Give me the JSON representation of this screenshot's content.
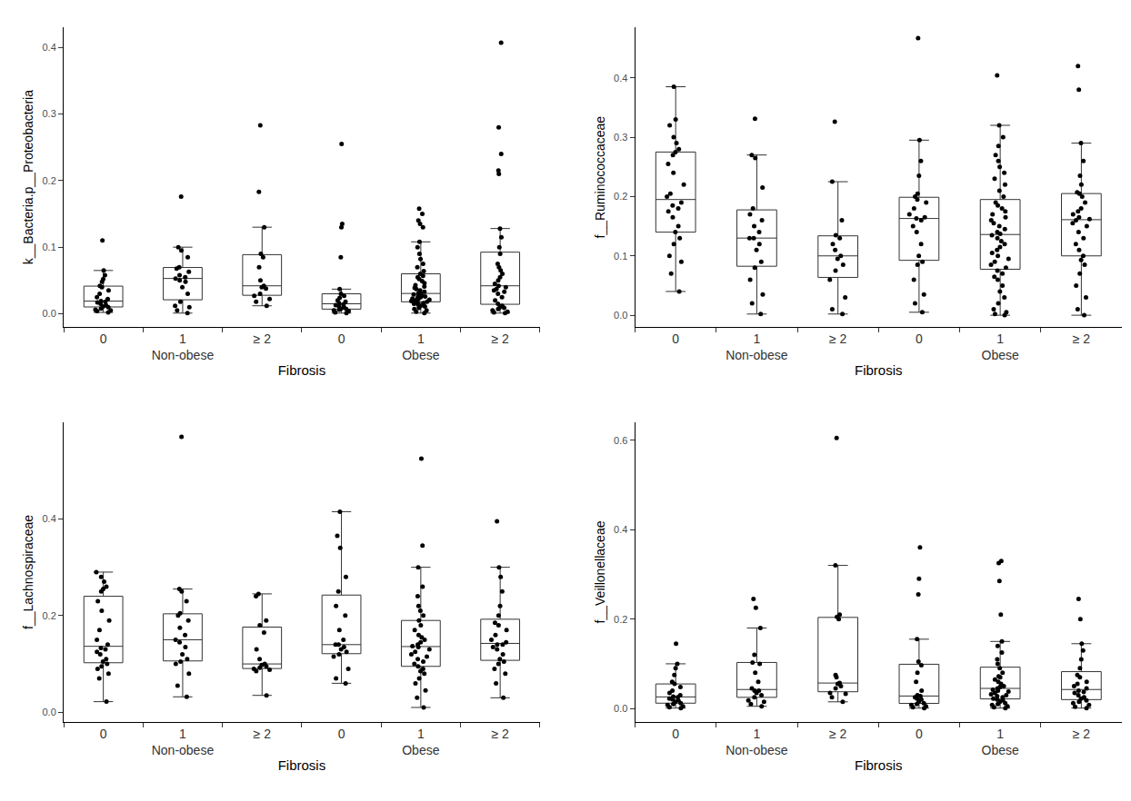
{
  "chart_data": [
    {
      "type": "box",
      "x_label": "Fibrosis",
      "y_label": "k__Bacteria.p__Proteobacteria",
      "color": "#000000",
      "grid": false,
      "categories": [
        "0",
        "1",
        "≥ 2",
        "0",
        "1",
        "≥ 2"
      ],
      "groups": [
        "Non-obese",
        "Non-obese",
        "Non-obese",
        "Obese",
        "Obese",
        "Obese"
      ],
      "ylim": [
        -0.02,
        0.43
      ],
      "yticks": [
        {
          "value": 0,
          "label": "0.0"
        },
        0.1,
        0.2,
        0.3,
        0.4
      ],
      "values": [
        [
          0.002,
          0.004,
          0.005,
          0.006,
          0.008,
          0.01,
          0.011,
          0.013,
          0.015,
          0.017,
          0.018,
          0.019,
          0.022,
          0.025,
          0.03,
          0.035,
          0.04,
          0.042,
          0.048,
          0.052,
          0.058,
          0.065,
          0.11
        ],
        [
          0.001,
          0.005,
          0.01,
          0.012,
          0.018,
          0.03,
          0.04,
          0.048,
          0.05,
          0.053,
          0.055,
          0.058,
          0.063,
          0.068,
          0.07,
          0.085,
          0.095,
          0.1,
          0.176
        ],
        [
          0.012,
          0.018,
          0.022,
          0.027,
          0.03,
          0.038,
          0.04,
          0.042,
          0.05,
          0.07,
          0.085,
          0.09,
          0.13,
          0.183,
          0.283
        ],
        [
          0.001,
          0.002,
          0.004,
          0.005,
          0.006,
          0.007,
          0.008,
          0.01,
          0.012,
          0.013,
          0.014,
          0.016,
          0.018,
          0.02,
          0.024,
          0.027,
          0.03,
          0.037,
          0.085,
          0.13,
          0.135,
          0.255
        ],
        [
          0.001,
          0.003,
          0.005,
          0.007,
          0.009,
          0.011,
          0.012,
          0.013,
          0.014,
          0.015,
          0.016,
          0.017,
          0.018,
          0.019,
          0.02,
          0.021,
          0.022,
          0.023,
          0.024,
          0.025,
          0.026,
          0.027,
          0.028,
          0.029,
          0.03,
          0.031,
          0.033,
          0.035,
          0.037,
          0.039,
          0.041,
          0.043,
          0.046,
          0.049,
          0.052,
          0.055,
          0.057,
          0.06,
          0.064,
          0.07,
          0.075,
          0.082,
          0.09,
          0.1,
          0.108,
          0.13,
          0.135,
          0.14,
          0.15,
          0.158
        ],
        [
          0.001,
          0.002,
          0.003,
          0.005,
          0.007,
          0.009,
          0.01,
          0.012,
          0.015,
          0.02,
          0.025,
          0.03,
          0.033,
          0.035,
          0.037,
          0.04,
          0.042,
          0.045,
          0.05,
          0.055,
          0.06,
          0.065,
          0.07,
          0.075,
          0.09,
          0.1,
          0.115,
          0.128,
          0.21,
          0.215,
          0.24,
          0.28,
          0.407
        ]
      ]
    },
    {
      "type": "box",
      "x_label": "Fibrosis",
      "y_label": "f__Ruminococcaceae",
      "color": "#000000",
      "grid": false,
      "categories": [
        "0",
        "1",
        "≥ 2",
        "0",
        "1",
        "≥ 2"
      ],
      "groups": [
        "Non-obese",
        "Non-obese",
        "Non-obese",
        "Obese",
        "Obese",
        "Obese"
      ],
      "ylim": [
        -0.02,
        0.485
      ],
      "yticks": [
        {
          "value": 0,
          "label": "0.0"
        },
        0.1,
        0.2,
        0.3,
        0.4
      ],
      "values": [
        [
          0.04,
          0.07,
          0.09,
          0.1,
          0.12,
          0.13,
          0.14,
          0.15,
          0.165,
          0.175,
          0.18,
          0.185,
          0.19,
          0.2,
          0.205,
          0.22,
          0.24,
          0.255,
          0.27,
          0.275,
          0.28,
          0.29,
          0.3,
          0.32,
          0.33,
          0.385
        ],
        [
          0.002,
          0.02,
          0.035,
          0.06,
          0.08,
          0.09,
          0.11,
          0.12,
          0.13,
          0.13,
          0.14,
          0.15,
          0.16,
          0.17,
          0.18,
          0.215,
          0.265,
          0.27,
          0.331
        ],
        [
          0.002,
          0.01,
          0.03,
          0.06,
          0.075,
          0.085,
          0.095,
          0.1,
          0.11,
          0.12,
          0.13,
          0.135,
          0.16,
          0.225,
          0.326
        ],
        [
          0.005,
          0.02,
          0.035,
          0.06,
          0.085,
          0.09,
          0.1,
          0.12,
          0.14,
          0.15,
          0.16,
          0.163,
          0.165,
          0.17,
          0.18,
          0.19,
          0.195,
          0.2,
          0.205,
          0.235,
          0.26,
          0.295,
          0.467
        ],
        [
          0.0,
          0.002,
          0.005,
          0.01,
          0.02,
          0.03,
          0.04,
          0.05,
          0.06,
          0.065,
          0.07,
          0.075,
          0.08,
          0.085,
          0.09,
          0.095,
          0.1,
          0.105,
          0.11,
          0.115,
          0.12,
          0.125,
          0.13,
          0.135,
          0.137,
          0.14,
          0.145,
          0.15,
          0.155,
          0.16,
          0.165,
          0.17,
          0.175,
          0.18,
          0.185,
          0.19,
          0.2,
          0.21,
          0.22,
          0.23,
          0.24,
          0.25,
          0.26,
          0.27,
          0.285,
          0.3,
          0.32,
          0.404
        ],
        [
          0.0,
          0.01,
          0.03,
          0.05,
          0.07,
          0.085,
          0.093,
          0.1,
          0.11,
          0.12,
          0.13,
          0.14,
          0.15,
          0.155,
          0.16,
          0.162,
          0.165,
          0.17,
          0.175,
          0.18,
          0.19,
          0.2,
          0.205,
          0.207,
          0.22,
          0.235,
          0.26,
          0.29,
          0.38,
          0.42
        ]
      ]
    },
    {
      "type": "box",
      "x_label": "Fibrosis",
      "y_label": "f__Lachnospiraceae",
      "color": "#000000",
      "grid": false,
      "categories": [
        "0",
        "1",
        "≥ 2",
        "0",
        "1",
        "≥ 2"
      ],
      "groups": [
        "Non-obese",
        "Non-obese",
        "Non-obese",
        "Obese",
        "Obese",
        "Obese"
      ],
      "ylim": [
        -0.02,
        0.6
      ],
      "yticks": [
        {
          "value": 0,
          "label": "0.0"
        },
        0.2,
        0.4
      ],
      "values": [
        [
          0.022,
          0.07,
          0.08,
          0.09,
          0.095,
          0.1,
          0.105,
          0.11,
          0.12,
          0.125,
          0.13,
          0.133,
          0.14,
          0.15,
          0.17,
          0.19,
          0.21,
          0.23,
          0.25,
          0.255,
          0.26,
          0.27,
          0.28,
          0.29
        ],
        [
          0.032,
          0.055,
          0.08,
          0.1,
          0.105,
          0.11,
          0.12,
          0.135,
          0.145,
          0.15,
          0.16,
          0.175,
          0.19,
          0.2,
          0.205,
          0.23,
          0.25,
          0.255,
          0.57
        ],
        [
          0.035,
          0.085,
          0.088,
          0.09,
          0.092,
          0.095,
          0.098,
          0.1,
          0.11,
          0.13,
          0.165,
          0.18,
          0.19,
          0.24,
          0.245
        ],
        [
          0.06,
          0.07,
          0.09,
          0.115,
          0.12,
          0.125,
          0.13,
          0.135,
          0.14,
          0.14,
          0.15,
          0.17,
          0.2,
          0.22,
          0.25,
          0.28,
          0.34,
          0.365,
          0.415
        ],
        [
          0.01,
          0.03,
          0.045,
          0.06,
          0.07,
          0.08,
          0.085,
          0.09,
          0.095,
          0.1,
          0.105,
          0.11,
          0.115,
          0.12,
          0.125,
          0.13,
          0.135,
          0.137,
          0.14,
          0.145,
          0.15,
          0.155,
          0.16,
          0.17,
          0.18,
          0.19,
          0.2,
          0.21,
          0.22,
          0.24,
          0.26,
          0.3,
          0.345,
          0.525
        ],
        [
          0.03,
          0.06,
          0.08,
          0.09,
          0.1,
          0.105,
          0.11,
          0.12,
          0.13,
          0.135,
          0.14,
          0.14,
          0.145,
          0.15,
          0.16,
          0.17,
          0.18,
          0.185,
          0.2,
          0.22,
          0.25,
          0.28,
          0.3,
          0.395
        ]
      ]
    },
    {
      "type": "box",
      "x_label": "Fibrosis",
      "y_label": "f__Veillonellaceae",
      "color": "#000000",
      "grid": false,
      "categories": [
        "0",
        "1",
        "≥ 2",
        "0",
        "1",
        "≥ 2"
      ],
      "groups": [
        "Non-obese",
        "Non-obese",
        "Non-obese",
        "Obese",
        "Obese",
        "Obese"
      ],
      "ylim": [
        -0.03,
        0.64
      ],
      "yticks": [
        {
          "value": 0,
          "label": "0.0"
        },
        0.2,
        0.4,
        0.6
      ],
      "values": [
        [
          0.001,
          0.003,
          0.005,
          0.008,
          0.01,
          0.012,
          0.015,
          0.018,
          0.02,
          0.022,
          0.025,
          0.027,
          0.03,
          0.035,
          0.04,
          0.048,
          0.055,
          0.06,
          0.075,
          0.09,
          0.1,
          0.145
        ],
        [
          0.005,
          0.01,
          0.015,
          0.018,
          0.025,
          0.03,
          0.035,
          0.04,
          0.04,
          0.045,
          0.06,
          0.08,
          0.1,
          0.103,
          0.12,
          0.18,
          0.225,
          0.245
        ],
        [
          0.015,
          0.025,
          0.033,
          0.035,
          0.045,
          0.05,
          0.055,
          0.057,
          0.07,
          0.075,
          0.2,
          0.205,
          0.21,
          0.32,
          0.605
        ],
        [
          0.001,
          0.003,
          0.005,
          0.008,
          0.01,
          0.012,
          0.015,
          0.02,
          0.022,
          0.025,
          0.028,
          0.03,
          0.04,
          0.06,
          0.08,
          0.097,
          0.105,
          0.155,
          0.255,
          0.29,
          0.36
        ],
        [
          0.001,
          0.003,
          0.005,
          0.008,
          0.01,
          0.012,
          0.015,
          0.018,
          0.02,
          0.022,
          0.025,
          0.028,
          0.03,
          0.032,
          0.035,
          0.038,
          0.04,
          0.042,
          0.045,
          0.048,
          0.05,
          0.055,
          0.06,
          0.065,
          0.07,
          0.072,
          0.08,
          0.09,
          0.1,
          0.11,
          0.125,
          0.14,
          0.15,
          0.21,
          0.285,
          0.325,
          0.33
        ],
        [
          0.001,
          0.004,
          0.008,
          0.012,
          0.015,
          0.018,
          0.022,
          0.025,
          0.03,
          0.035,
          0.037,
          0.04,
          0.045,
          0.05,
          0.055,
          0.06,
          0.07,
          0.075,
          0.09,
          0.11,
          0.13,
          0.145,
          0.2,
          0.245
        ]
      ]
    }
  ]
}
